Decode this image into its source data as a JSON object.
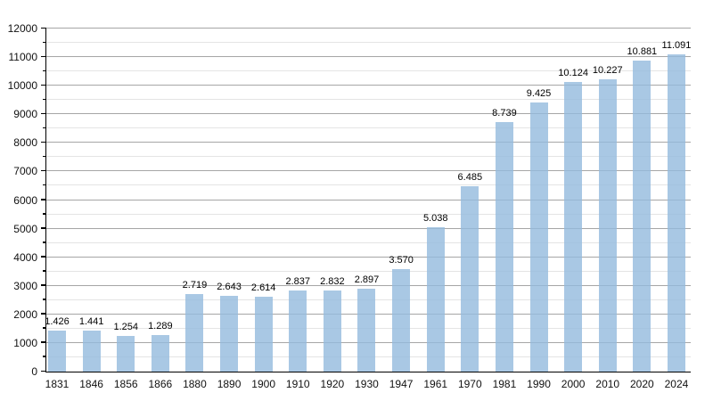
{
  "chart_data": {
    "type": "bar",
    "title": "",
    "xlabel": "",
    "ylabel": "",
    "categories": [
      "1831",
      "1846",
      "1856",
      "1866",
      "1880",
      "1890",
      "1900",
      "1910",
      "1920",
      "1930",
      "1947",
      "1961",
      "1970",
      "1981",
      "1990",
      "2000",
      "2010",
      "2020",
      "2024"
    ],
    "values": [
      1426,
      1441,
      1254,
      1289,
      2719,
      2643,
      2614,
      2837,
      2832,
      2897,
      3570,
      5038,
      6485,
      8739,
      9425,
      10124,
      10227,
      10881,
      11091
    ],
    "value_labels": [
      "1.426",
      "1.441",
      "1.254",
      "1.289",
      "2.719",
      "2.643",
      "2.614",
      "2.837",
      "2.832",
      "2.897",
      "3.570",
      "5.038",
      "6.485",
      "8.739",
      "9.425",
      "10.124",
      "10.227",
      "10.881",
      "11.091"
    ],
    "ylim": [
      0,
      12000
    ],
    "y_major_step": 1000,
    "y_minor_step": 500,
    "y_tick_labels": [
      "0",
      "1000",
      "2000",
      "3000",
      "4000",
      "5000",
      "6000",
      "7000",
      "8000",
      "9000",
      "10000",
      "11000",
      "12000"
    ],
    "grid": true,
    "legend": null,
    "bar_color": "#aecbe4",
    "major_grid_color": "#a6a6a6",
    "minor_grid_color": "#e4e4e4",
    "axis_color": "#000000"
  }
}
